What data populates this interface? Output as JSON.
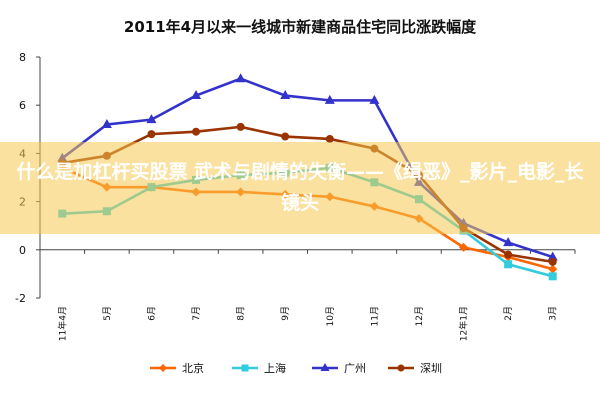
{
  "overlay": {
    "text": "什么是加杠杆买股票 武术与剧情的失衡——《缉恶》_影片_电影_长镜头"
  },
  "chart_data": {
    "type": "line",
    "title": "2011年4月以来一线城市新建商品住宅同比涨跌幅度",
    "xlabel": "",
    "ylabel": "",
    "categories": [
      "11年4月",
      "5月",
      "6月",
      "7月",
      "8月",
      "9月",
      "10月",
      "11月",
      "12月",
      "12年1月",
      "2月",
      "3月"
    ],
    "ylim": [
      -2,
      8
    ],
    "yticks": [
      -2,
      0,
      2,
      4,
      6,
      8
    ],
    "grid": false,
    "legend_position": "bottom",
    "series": [
      {
        "name": "北京",
        "color": "#ff6600",
        "marker": "diamond",
        "values": [
          3.4,
          2.6,
          2.6,
          2.4,
          2.4,
          2.3,
          2.2,
          1.8,
          1.3,
          0.1,
          -0.3,
          -0.8
        ]
      },
      {
        "name": "上海",
        "color": "#33ccdd",
        "marker": "square",
        "values": [
          1.5,
          1.6,
          2.6,
          2.9,
          3.1,
          3.2,
          3.4,
          2.8,
          2.1,
          0.8,
          -0.6,
          -1.1
        ]
      },
      {
        "name": "广州",
        "color": "#3333cc",
        "marker": "triangle",
        "values": [
          3.8,
          5.2,
          5.4,
          6.4,
          7.1,
          6.4,
          6.2,
          6.2,
          2.8,
          1.1,
          0.3,
          -0.3
        ]
      },
      {
        "name": "深圳",
        "color": "#993300",
        "marker": "circle",
        "values": [
          3.6,
          3.9,
          4.8,
          4.9,
          5.1,
          4.7,
          4.6,
          4.2,
          3.1,
          0.9,
          -0.2,
          -0.5
        ]
      }
    ]
  }
}
